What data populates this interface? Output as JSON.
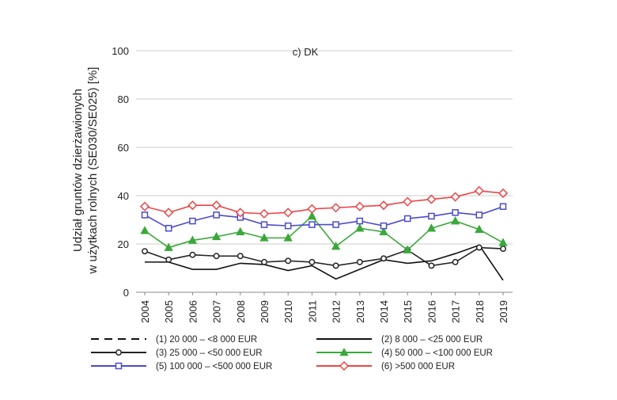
{
  "chart_data": {
    "type": "line",
    "title": "c) DK",
    "ylabel_line1": "Udział gruntów dzierżawionych",
    "ylabel_line2": "w użytkach rolnych (SE030/SE025) [%]",
    "xlabel": "",
    "x": [
      "2004",
      "2005",
      "2006",
      "2007",
      "2008",
      "2009",
      "2010",
      "2011",
      "2012",
      "2013",
      "2014",
      "2015",
      "2016",
      "2017",
      "2018",
      "2019"
    ],
    "ylim": [
      0,
      100
    ],
    "yticks": [
      "0",
      "20",
      "40",
      "60",
      "80",
      "100"
    ],
    "grid": true,
    "legend_position": "bottom",
    "series": [
      {
        "name": "(1) 20 000 – <8 000 EUR",
        "color": "#111111",
        "dash": "dashed",
        "marker": "none",
        "values": [
          null,
          null,
          null,
          null,
          null,
          null,
          null,
          null,
          null,
          null,
          null,
          null,
          null,
          null,
          null,
          null
        ]
      },
      {
        "name": "(2) 8 000 – <25 000 EUR",
        "color": "#111111",
        "dash": "solid",
        "marker": "none",
        "values": [
          12.5,
          12.5,
          9.5,
          9.5,
          12,
          11.5,
          9,
          11,
          5.5,
          9.5,
          13.5,
          12,
          13,
          16,
          19.5,
          5
        ]
      },
      {
        "name": "(3) 25 000 – <50 000 EUR",
        "color": "#222222",
        "dash": "solid",
        "marker": "circle",
        "values": [
          17,
          13.5,
          15.5,
          15,
          15,
          12.5,
          13,
          12.5,
          11,
          12.5,
          14,
          17.5,
          11,
          12.5,
          18.5,
          18
        ]
      },
      {
        "name": "(4) 50 000 – <100 000 EUR",
        "color": "#3aa83a",
        "dash": "solid",
        "marker": "triangle",
        "values": [
          25.5,
          18.5,
          21.5,
          23,
          25,
          22.5,
          22.5,
          31.5,
          19,
          26.5,
          25,
          17.5,
          26.5,
          29.5,
          26,
          20.5
        ]
      },
      {
        "name": "(5) 100 000 – <500 000 EUR",
        "color": "#4a4acc",
        "dash": "solid",
        "marker": "square",
        "values": [
          32,
          26.5,
          29.5,
          32,
          31,
          28,
          27.5,
          28,
          28,
          29.5,
          27.5,
          30.5,
          31.5,
          33,
          32,
          35.5
        ]
      },
      {
        "name": "(6) >500 000 EUR",
        "color": "#ee4444",
        "dash": "solid",
        "marker": "diamond",
        "values": [
          35.5,
          33,
          36,
          36,
          33,
          32.5,
          33,
          34.5,
          35,
          35.5,
          36,
          37.5,
          38.5,
          39.5,
          42,
          41
        ]
      }
    ]
  }
}
